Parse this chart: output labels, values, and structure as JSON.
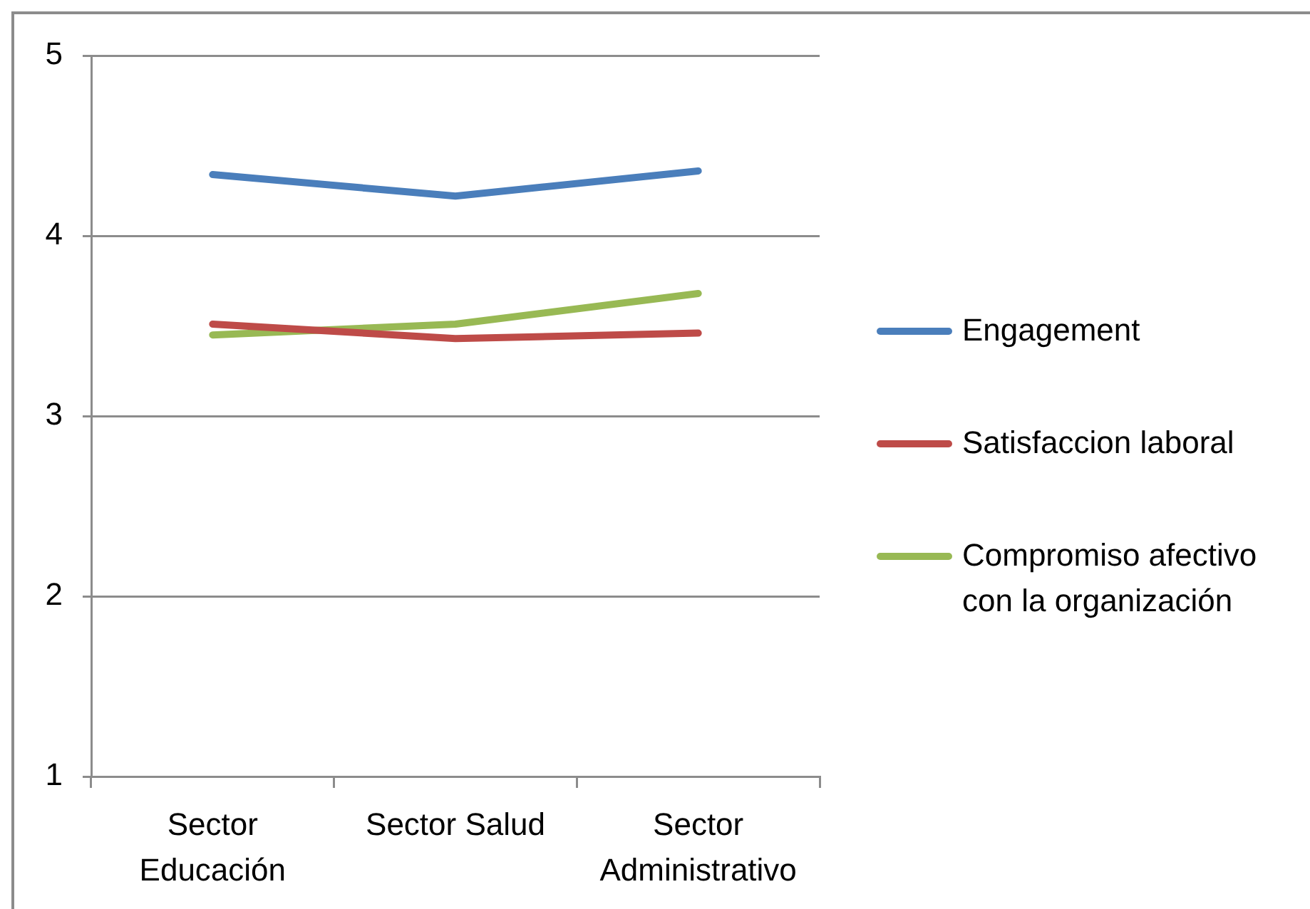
{
  "chart_data": {
    "type": "line",
    "categories": [
      "Sector Educación",
      "Sector Salud",
      "Sector Administrativo"
    ],
    "series": [
      {
        "name": "Engagement",
        "color": "#4a7ebb",
        "values": [
          4.34,
          4.22,
          4.36
        ]
      },
      {
        "name": "Satisfaccion laboral",
        "color": "#be4b48",
        "values": [
          3.51,
          3.43,
          3.46
        ]
      },
      {
        "name": "Compromiso afectivo con la organización",
        "color": "#98b954",
        "values": [
          3.45,
          3.51,
          3.68
        ]
      }
    ],
    "ylim": [
      1,
      5
    ],
    "yticks": [
      1,
      2,
      3,
      4,
      5
    ],
    "grid": "y",
    "legend": "right"
  }
}
